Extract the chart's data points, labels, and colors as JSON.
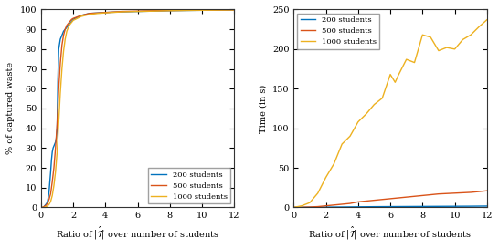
{
  "left": {
    "xlabel": "Ratio of $|\\hat{\\mathcal{T}}|$ over number of students",
    "ylabel": "% of captured waste",
    "xlim": [
      0,
      12
    ],
    "ylim": [
      0,
      100
    ],
    "xticks": [
      0,
      2,
      4,
      6,
      8,
      10,
      12
    ],
    "yticks": [
      0,
      10,
      20,
      30,
      40,
      50,
      60,
      70,
      80,
      90,
      100
    ],
    "series": {
      "200": {
        "color": "#0072BD",
        "label": "200 students",
        "x": [
          0,
          0.05,
          0.1,
          0.15,
          0.2,
          0.25,
          0.3,
          0.35,
          0.4,
          0.45,
          0.5,
          0.55,
          0.6,
          0.65,
          0.7,
          0.75,
          0.8,
          0.85,
          0.9,
          0.95,
          1.0,
          1.05,
          1.1,
          1.2,
          1.3,
          1.4,
          1.5,
          1.6,
          1.7,
          1.8,
          1.9,
          2.0,
          2.5,
          3.0,
          4.0,
          5.0,
          6.0,
          7.0,
          8.0,
          9.0,
          10.0,
          11.0,
          12.0
        ],
        "y": [
          0,
          0,
          0,
          0,
          0.5,
          1,
          1.5,
          2,
          3,
          5,
          8,
          13,
          18,
          24,
          28,
          30,
          31,
          32,
          33,
          35,
          40,
          65,
          80,
          85,
          87,
          89,
          90,
          91,
          92,
          93,
          94,
          95,
          97,
          98,
          98.5,
          98.8,
          99,
          99.2,
          99.4,
          99.5,
          99.6,
          99.7,
          99.8
        ]
      },
      "500": {
        "color": "#D95319",
        "label": "500 students",
        "x": [
          0,
          0.1,
          0.2,
          0.3,
          0.4,
          0.5,
          0.6,
          0.7,
          0.8,
          0.9,
          1.0,
          1.1,
          1.2,
          1.3,
          1.4,
          1.5,
          1.6,
          1.7,
          1.8,
          1.9,
          2.0,
          2.5,
          3.0,
          4.0,
          5.0,
          6.0,
          7.0,
          8.0,
          9.0,
          10.0,
          11.0,
          12.0
        ],
        "y": [
          0,
          0,
          0.5,
          1,
          2,
          4,
          7,
          13,
          20,
          30,
          42,
          60,
          73,
          82,
          87,
          90,
          92,
          93,
          94,
          95,
          95.5,
          97,
          98,
          98.5,
          99,
          99.2,
          99.4,
          99.5,
          99.6,
          99.7,
          99.7,
          99.8
        ]
      },
      "1000": {
        "color": "#EDB120",
        "label": "1000 students",
        "x": [
          0,
          0.1,
          0.2,
          0.3,
          0.4,
          0.5,
          0.6,
          0.7,
          0.8,
          0.9,
          1.0,
          1.1,
          1.2,
          1.3,
          1.4,
          1.5,
          1.6,
          1.7,
          1.8,
          1.9,
          2.0,
          2.5,
          3.0,
          3.5,
          4.0,
          5.0,
          6.0,
          7.0,
          8.0,
          9.0,
          10.0,
          11.0,
          12.0
        ],
        "y": [
          0,
          0,
          0,
          0.3,
          0.7,
          1.5,
          3,
          6,
          11,
          18,
          28,
          43,
          58,
          70,
          79,
          85,
          89,
          91,
          92.5,
          93.5,
          94.5,
          96.5,
          97.5,
          98,
          98.3,
          98.8,
          99,
          99.2,
          99.4,
          99.5,
          99.6,
          99.7,
          99.8
        ]
      }
    },
    "legend_loc": "lower right"
  },
  "right": {
    "xlabel": "Ratio of $|\\hat{\\mathcal{T}}|$ over number of students",
    "ylabel": "Time (in s)",
    "xlim": [
      0,
      12
    ],
    "ylim": [
      0,
      250
    ],
    "xticks": [
      0,
      2,
      4,
      6,
      8,
      10,
      12
    ],
    "yticks": [
      0,
      50,
      100,
      150,
      200,
      250
    ],
    "series": {
      "200": {
        "color": "#0072BD",
        "label": "200 students",
        "x": [
          0,
          0.5,
          1,
          1.5,
          2,
          3,
          4,
          5,
          6,
          7,
          8,
          9,
          10,
          11,
          12
        ],
        "y": [
          0,
          0.1,
          0.2,
          0.3,
          0.4,
          0.5,
          0.7,
          0.9,
          1.0,
          1.1,
          1.2,
          1.3,
          1.4,
          1.5,
          1.7
        ]
      },
      "500": {
        "color": "#D95319",
        "label": "500 students",
        "x": [
          0,
          0.5,
          1,
          1.5,
          2,
          2.5,
          3,
          3.5,
          4,
          5,
          6,
          7,
          8,
          9,
          10,
          11,
          12
        ],
        "y": [
          0,
          0.2,
          0.5,
          1,
          2,
          3,
          4,
          5,
          7,
          9,
          11,
          13,
          15,
          17,
          18,
          19,
          21
        ]
      },
      "1000": {
        "color": "#EDB120",
        "label": "1000 students",
        "x": [
          0,
          0.5,
          1.0,
          1.5,
          2.0,
          2.5,
          3.0,
          3.5,
          4.0,
          4.5,
          5.0,
          5.5,
          6.0,
          6.3,
          6.5,
          7.0,
          7.5,
          8.0,
          8.5,
          9.0,
          9.5,
          10.0,
          10.5,
          11.0,
          11.5,
          12.0
        ],
        "y": [
          0,
          2,
          6,
          18,
          38,
          55,
          80,
          90,
          108,
          118,
          130,
          138,
          168,
          158,
          167,
          187,
          183,
          218,
          215,
          198,
          202,
          200,
          212,
          218,
          228,
          237
        ]
      }
    },
    "legend_loc": "upper left"
  }
}
